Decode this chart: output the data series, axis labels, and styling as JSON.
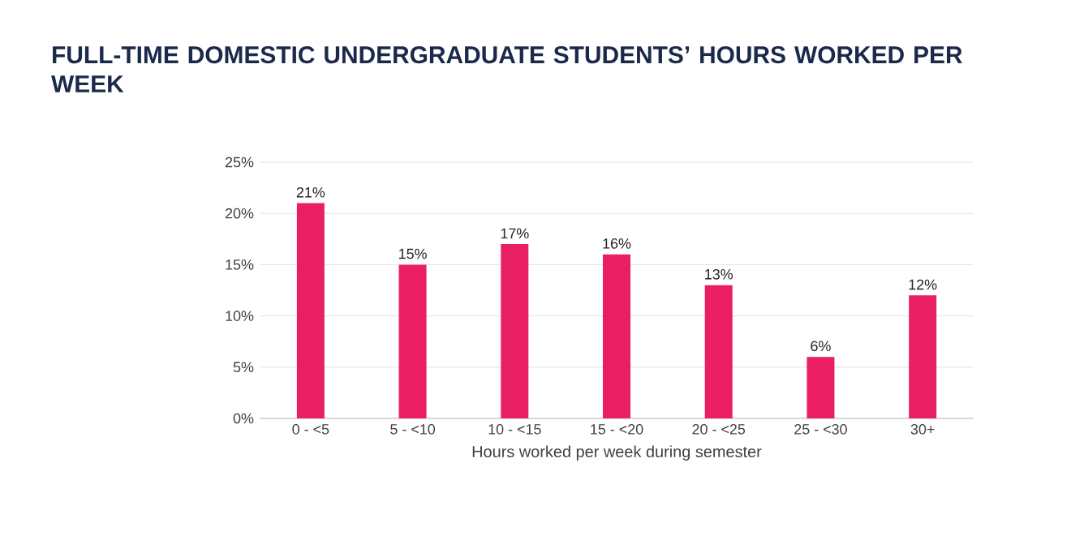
{
  "chart_data": {
    "type": "bar",
    "title": "FULL-TIME DOMESTIC UNDERGRADUATE STUDENTS’ HOURS WORKED PER WEEK",
    "xlabel": "Hours worked per week during semester",
    "categories": [
      "0 - <5",
      "5 - <10",
      "10 - <15",
      "15 - <20",
      "20 - <25",
      "25 - <30",
      "30+"
    ],
    "values": [
      21,
      15,
      17,
      16,
      13,
      6,
      12
    ],
    "value_labels": [
      "21%",
      "15%",
      "17%",
      "16%",
      "13%",
      "6%",
      "12%"
    ],
    "color": "#e91e63",
    "ylim": [
      0,
      25
    ],
    "yticks": [
      {
        "value": 0,
        "label": "0%"
      },
      {
        "value": 5,
        "label": "5%"
      },
      {
        "value": 10,
        "label": "10%"
      },
      {
        "value": 15,
        "label": "15%"
      },
      {
        "value": 20,
        "label": "20%"
      },
      {
        "value": 25,
        "label": "25%"
      }
    ],
    "grid": "y"
  }
}
